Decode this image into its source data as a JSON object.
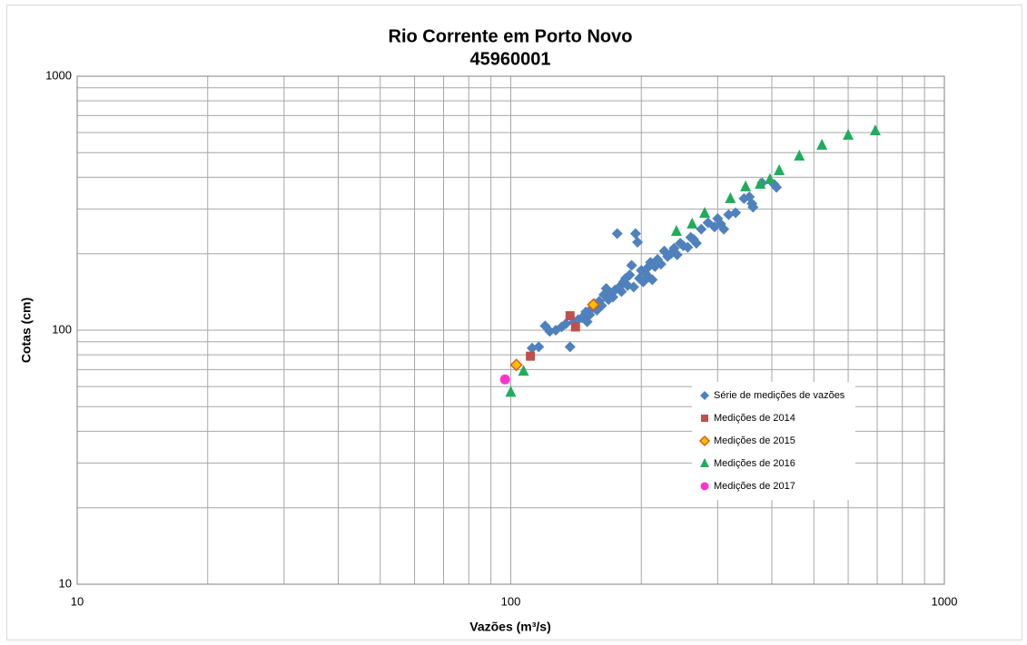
{
  "chart_data": {
    "type": "scatter",
    "title": "Rio Corrente em Porto Novo",
    "subtitle": "45960001",
    "x_label": "Vazões (m³/s)",
    "y_label": "Cotas (cm)",
    "log_x": true,
    "log_y": true,
    "grid": true,
    "xlim": [
      10,
      1000
    ],
    "ylim": [
      10,
      1000
    ],
    "xticks": [
      10,
      100,
      1000
    ],
    "yticks": [
      10,
      100,
      1000
    ],
    "xminor": [
      20,
      30,
      40,
      50,
      60,
      70,
      80,
      90,
      200,
      300,
      400,
      500,
      600,
      700,
      800,
      900
    ],
    "yminor": [
      20,
      30,
      40,
      50,
      60,
      70,
      80,
      90,
      200,
      300,
      400,
      500,
      600,
      700,
      800,
      900
    ],
    "legend": "lower right",
    "series": [
      {
        "name": "Série de medições de vazões",
        "color": "#4f81bd",
        "marker": "diamond",
        "x": [
          112,
          116,
          120,
          123,
          127,
          131,
          134,
          137,
          140,
          143,
          146,
          149,
          150,
          152,
          154,
          156,
          158,
          160,
          162,
          164,
          166,
          168,
          170,
          172,
          174,
          176,
          178,
          180,
          182,
          184,
          186,
          188,
          190,
          192,
          194,
          196,
          198,
          200,
          202,
          204,
          206,
          208,
          210,
          212,
          215,
          218,
          222,
          226,
          230,
          234,
          238,
          242,
          246,
          250,
          256,
          260,
          264,
          268,
          275,
          285,
          295,
          300,
          305,
          310,
          318,
          330,
          345,
          355,
          360,
          362,
          380,
          405,
          410
        ],
        "values": [
          85,
          86,
          104,
          99,
          100,
          103,
          106,
          86,
          108,
          110,
          112,
          118,
          108,
          115,
          122,
          127,
          120,
          130,
          125,
          138,
          146,
          132,
          140,
          135,
          144,
          240,
          148,
          142,
          155,
          160,
          150,
          165,
          180,
          148,
          240,
          222,
          160,
          172,
          155,
          168,
          175,
          162,
          185,
          158,
          178,
          190,
          182,
          205,
          195,
          200,
          210,
          198,
          220,
          215,
          212,
          232,
          228,
          220,
          250,
          265,
          255,
          275,
          262,
          250,
          285,
          290,
          330,
          335,
          315,
          305,
          380,
          375,
          365
        ]
      },
      {
        "name": "Medições de 2014",
        "color": "#c0504d",
        "marker": "square",
        "x": [
          111,
          137,
          141
        ],
        "values": [
          79,
          114,
          103
        ]
      },
      {
        "name": "Medições de 2015",
        "color": "#ffc000",
        "marker": "diamond-outline",
        "x": [
          103,
          155
        ],
        "values": [
          73,
          126
        ]
      },
      {
        "name": "Medições de 2016",
        "color": "#1fad5a",
        "marker": "triangle",
        "x": [
          100,
          107,
          241,
          262,
          280,
          321,
          348,
          376,
          396,
          416,
          463,
          522,
          600,
          693
        ],
        "values": [
          57,
          69,
          245,
          262,
          289,
          330,
          367,
          376,
          392,
          425,
          485,
          535,
          586,
          610
        ]
      },
      {
        "name": "Medições de 2017",
        "color": "#ff33cc",
        "marker": "circle",
        "x": [
          97
        ],
        "values": [
          64
        ]
      }
    ]
  }
}
